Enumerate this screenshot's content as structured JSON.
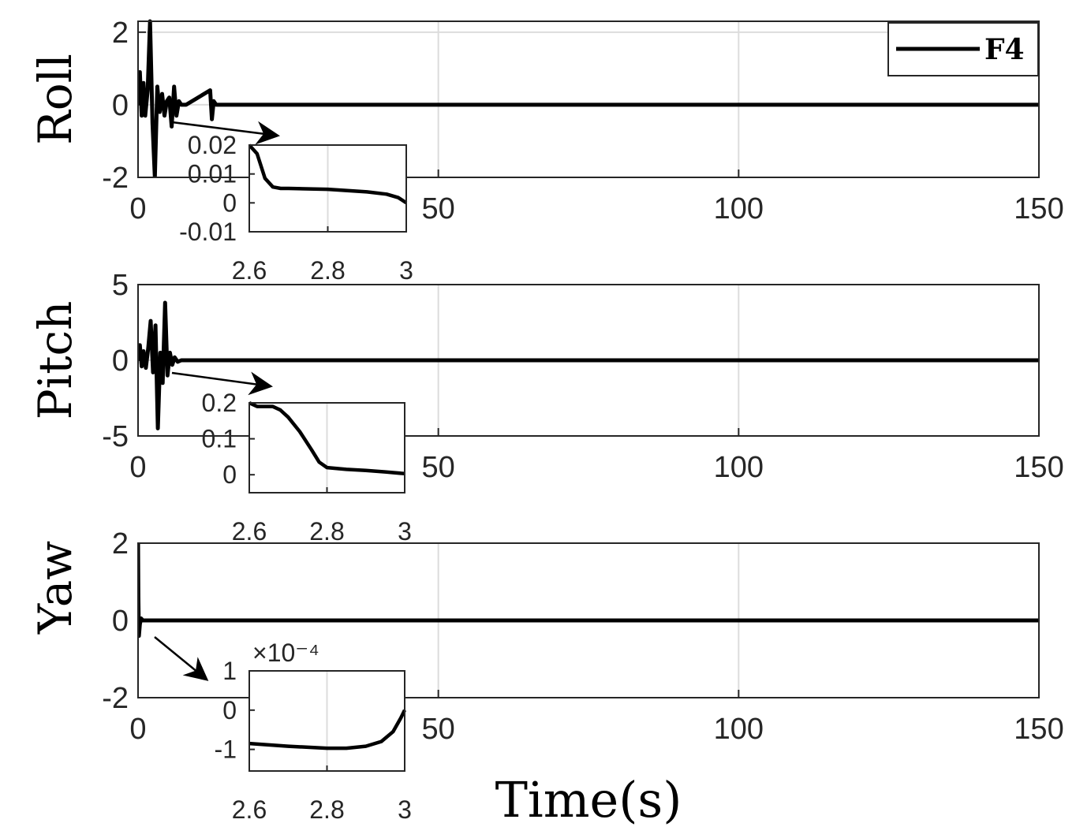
{
  "chart_data": [
    {
      "type": "line",
      "ylabel": "Roll",
      "xlabel": "",
      "xlim": [
        0,
        150
      ],
      "ylim": [
        -2,
        2.3
      ],
      "xticks": [
        "0",
        "50",
        "100",
        "150"
      ],
      "yticks": [
        "-2",
        "0",
        "2"
      ],
      "grid": true,
      "legend": {
        "placement": "top-right",
        "entries": [
          "F4"
        ]
      },
      "series": [
        {
          "name": "F4",
          "x": [
            0,
            0.3,
            0.6,
            0.9,
            1.2,
            1.6,
            2.0,
            2.4,
            2.8,
            3.2,
            3.6,
            4.0,
            4.4,
            4.8,
            5.2,
            5.6,
            6.0,
            6.4,
            6.8,
            7.2,
            8,
            12,
            12.3,
            12.6,
            13,
            20,
            150
          ],
          "y": [
            0,
            0.9,
            -0.3,
            0.6,
            -0.3,
            0.4,
            2.3,
            -0.5,
            -2.0,
            0.5,
            -0.2,
            0.3,
            -0.3,
            0.1,
            0.2,
            -0.6,
            0.5,
            -0.3,
            0.1,
            0,
            0,
            0.4,
            -0.4,
            0.1,
            0,
            0,
            0
          ]
        }
      ],
      "inset": {
        "xlim": [
          2.6,
          3
        ],
        "ylim": [
          -0.01,
          0.02
        ],
        "xticks": [
          "2.6",
          "2.8",
          "3"
        ],
        "yticks": [
          "-0.01",
          "0",
          "0.01",
          "0.02"
        ],
        "x": [
          2.6,
          2.62,
          2.64,
          2.66,
          2.68,
          2.7,
          2.8,
          2.9,
          2.95,
          2.98,
          3.0
        ],
        "y": [
          0.02,
          0.017,
          0.0085,
          0.0055,
          0.005,
          0.005,
          0.0047,
          0.0038,
          0.003,
          0.0018,
          0.0
        ]
      }
    },
    {
      "type": "line",
      "ylabel": "Pitch",
      "xlabel": "",
      "xlim": [
        0,
        150
      ],
      "ylim": [
        -5,
        5
      ],
      "xticks": [
        "0",
        "50",
        "100",
        "150"
      ],
      "yticks": [
        "-5",
        "0",
        "5"
      ],
      "grid": true,
      "series": [
        {
          "name": "F4",
          "x": [
            0,
            0.3,
            0.6,
            0.9,
            1.3,
            1.7,
            2.1,
            2.5,
            2.9,
            3.3,
            3.7,
            4.1,
            4.5,
            4.9,
            5.3,
            5.7,
            6.1,
            6.6,
            7.2,
            20,
            150
          ],
          "y": [
            0,
            1.0,
            -0.4,
            0.6,
            -0.5,
            0.8,
            2.6,
            -0.8,
            2.3,
            -4.5,
            0.5,
            -1.5,
            3.8,
            -1.0,
            0.5,
            -0.3,
            0.2,
            -0.1,
            0,
            0,
            0
          ]
        }
      ],
      "inset": {
        "xlim": [
          2.6,
          3
        ],
        "ylim": [
          -0.05,
          0.2
        ],
        "xticks": [
          "2.6",
          "2.8",
          "3"
        ],
        "yticks": [
          "0",
          "0.1",
          "0.2"
        ],
        "x": [
          2.6,
          2.62,
          2.64,
          2.66,
          2.68,
          2.7,
          2.73,
          2.76,
          2.78,
          2.8,
          2.85,
          2.9,
          2.95,
          3.0
        ],
        "y": [
          0.2,
          0.19,
          0.19,
          0.19,
          0.18,
          0.16,
          0.12,
          0.07,
          0.035,
          0.02,
          0.015,
          0.012,
          0.008,
          0.003
        ]
      }
    },
    {
      "type": "line",
      "ylabel": "Yaw",
      "xlabel": "Time(s)",
      "xlim": [
        0,
        150
      ],
      "ylim": [
        -2,
        2
      ],
      "xticks": [
        "0",
        "50",
        "100",
        "150"
      ],
      "yticks": [
        "-2",
        "0",
        "2"
      ],
      "grid": true,
      "series": [
        {
          "name": "F4",
          "x": [
            0,
            0.05,
            0.15,
            0.3,
            0.5,
            0.8,
            1.5,
            150
          ],
          "y": [
            2.0,
            0.6,
            -0.4,
            -0.1,
            0.05,
            0,
            0,
            0
          ]
        }
      ],
      "inset": {
        "xlim": [
          2.6,
          3
        ],
        "ylim": [
          -1.55,
          1
        ],
        "xticks": [
          "2.6",
          "2.8",
          "3"
        ],
        "yticks": [
          "-1",
          "0",
          "1"
        ],
        "exponent_label": "×10⁻⁴",
        "x": [
          2.6,
          2.7,
          2.8,
          2.85,
          2.9,
          2.94,
          2.97,
          2.99,
          3.0
        ],
        "y": [
          -0.85,
          -0.92,
          -0.97,
          -0.97,
          -0.92,
          -0.8,
          -0.55,
          -0.2,
          0.0
        ]
      }
    }
  ]
}
